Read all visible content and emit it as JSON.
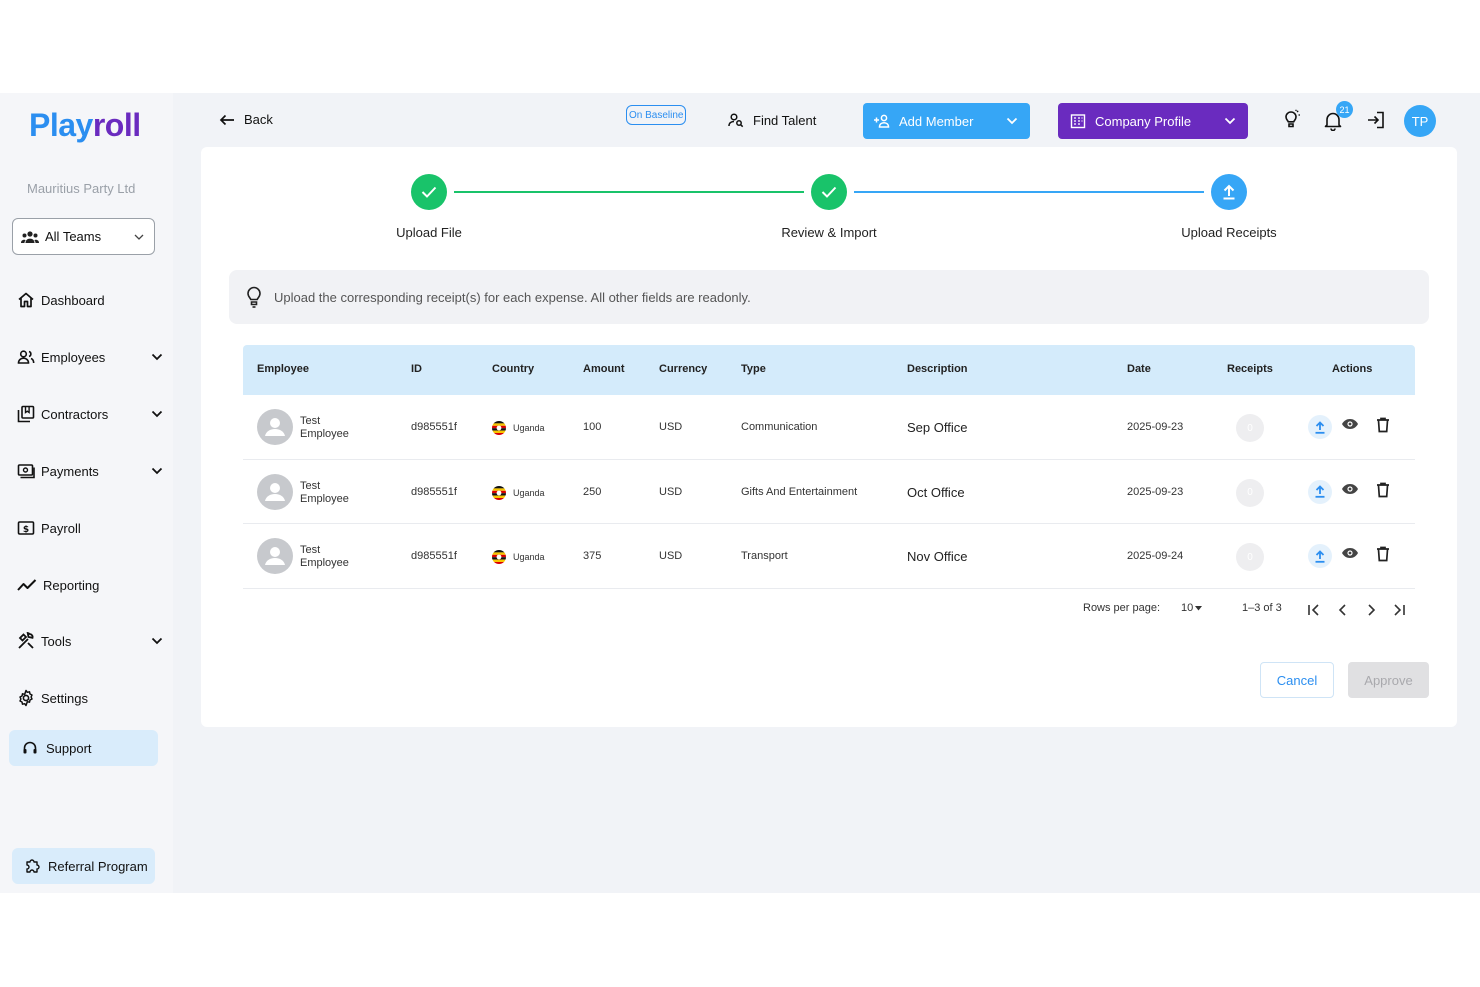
{
  "sidebar": {
    "logo_part1": "Play",
    "logo_part2": "roll",
    "company_name": "Mauritius Party Ltd",
    "team_select": "All Teams",
    "items": [
      {
        "label": "Dashboard",
        "icon": "home-icon",
        "expandable": false
      },
      {
        "label": "Employees",
        "icon": "people-icon",
        "expandable": true
      },
      {
        "label": "Contractors",
        "icon": "contractors-icon",
        "expandable": true
      },
      {
        "label": "Payments",
        "icon": "payments-icon",
        "expandable": true
      },
      {
        "label": "Payroll",
        "icon": "payroll-icon",
        "expandable": false
      },
      {
        "label": "Reporting",
        "icon": "trend-icon",
        "expandable": false
      },
      {
        "label": "Tools",
        "icon": "tools-icon",
        "expandable": true
      },
      {
        "label": "Settings",
        "icon": "gear-icon",
        "expandable": false
      }
    ],
    "support_label": "Support",
    "referral_label": "Referral Program"
  },
  "header": {
    "back_label": "Back",
    "baseline_label": "On Baseline",
    "find_talent_label": "Find Talent",
    "add_member_label": "Add Member",
    "company_profile_label": "Company Profile",
    "notification_count": "21",
    "avatar_initials": "TP"
  },
  "colors": {
    "primary_blue": "#36a6f6",
    "brand_purple": "#6a2bbf",
    "success_green": "#19c36a"
  },
  "stepper": {
    "steps": [
      {
        "label": "Upload File",
        "status": "done"
      },
      {
        "label": "Review & Import",
        "status": "done"
      },
      {
        "label": "Upload Receipts",
        "status": "active"
      }
    ]
  },
  "info_text": "Upload the corresponding receipt(s) for each expense. All other fields are readonly.",
  "table": {
    "columns": [
      "Employee",
      "ID",
      "Country",
      "Amount",
      "Currency",
      "Type",
      "Description",
      "Date",
      "Receipts",
      "Actions"
    ],
    "rows": [
      {
        "employee_first": "Test",
        "employee_last": "Employee",
        "id": "d985551f",
        "country": "Uganda",
        "amount": "100",
        "currency": "USD",
        "type": "Communication",
        "description": "Sep Office",
        "date": "2025-09-23",
        "receipts": "0"
      },
      {
        "employee_first": "Test",
        "employee_last": "Employee",
        "id": "d985551f",
        "country": "Uganda",
        "amount": "250",
        "currency": "USD",
        "type": "Gifts And Entertainment",
        "description": "Oct Office",
        "date": "2025-09-23",
        "receipts": "0"
      },
      {
        "employee_first": "Test",
        "employee_last": "Employee",
        "id": "d985551f",
        "country": "Uganda",
        "amount": "375",
        "currency": "USD",
        "type": "Transport",
        "description": "Nov Office",
        "date": "2025-09-24",
        "receipts": "0"
      }
    ]
  },
  "pagination": {
    "rows_per_page_label": "Rows per page:",
    "rows_per_page_value": "10",
    "range": "1–3 of 3"
  },
  "actions": {
    "cancel_label": "Cancel",
    "approve_label": "Approve"
  }
}
